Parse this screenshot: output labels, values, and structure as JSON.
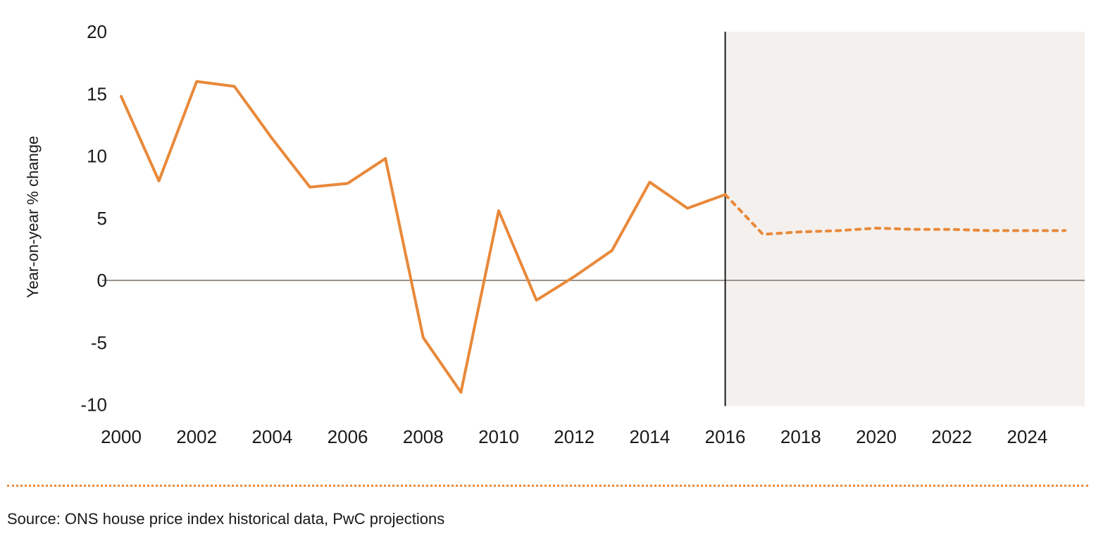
{
  "chart_data": {
    "type": "line",
    "title": "",
    "xlabel": "",
    "ylabel": "Year-on-year % change",
    "ylim": [
      -10,
      20
    ],
    "xlim": [
      2000,
      2025
    ],
    "yticks": [
      "20",
      "15",
      "10",
      "5",
      "0",
      "-5",
      "-10"
    ],
    "xticks": [
      "2000",
      "2002",
      "2004",
      "2006",
      "2008",
      "2010",
      "2012",
      "2014",
      "2016",
      "2018",
      "2020",
      "2022",
      "2024"
    ],
    "grid": false,
    "forecast_start": 2016,
    "series": [
      {
        "name": "Historical",
        "style": "solid",
        "color": "#e8893a",
        "x": [
          2000,
          2001,
          2002,
          2003,
          2004,
          2005,
          2006,
          2007,
          2008,
          2009,
          2010,
          2011,
          2012,
          2013,
          2014,
          2015,
          2016
        ],
        "values": [
          14.8,
          8.0,
          16.0,
          15.6,
          11.4,
          7.5,
          7.8,
          9.8,
          -4.6,
          -9.0,
          5.6,
          -1.6,
          0.3,
          2.4,
          7.9,
          5.8,
          6.9
        ]
      },
      {
        "name": "PwC projection",
        "style": "dotted",
        "color": "#e8893a",
        "x": [
          2016,
          2017,
          2018,
          2019,
          2020,
          2021,
          2022,
          2023,
          2024,
          2025
        ],
        "values": [
          6.9,
          3.7,
          3.9,
          4.0,
          4.2,
          4.1,
          4.1,
          4.0,
          4.0,
          4.0
        ]
      }
    ]
  },
  "source": "Source: ONS house price index historical data, PwC projections",
  "colors": {
    "line": "#e8893a",
    "shade": "#f4f0ed",
    "zero": "#9a918b"
  }
}
